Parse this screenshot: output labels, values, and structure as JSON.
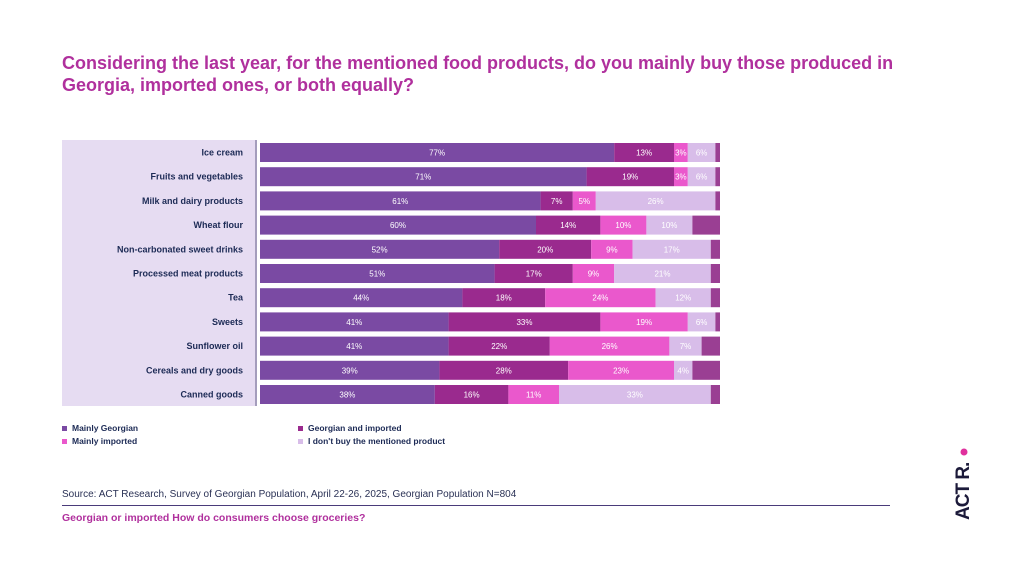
{
  "title": "Considering the last year, for the mentioned food products, do you mainly buy those produced in Georgia, imported ones, or both equally?",
  "source": "Source: ACT Research, Survey of Georgian Population, April 22-26, 2025, Georgian Population N=804",
  "footer": "Georgian or imported How do consumers choose groceries?",
  "logo_text": "ACT R.",
  "colors": {
    "mainly_georgian": "#7a4aa3",
    "georgian_and_imported": "#9a2a8e",
    "mainly_imported": "#ea58cc",
    "dont_buy": "#d8bde9",
    "remainder": "#9a3f93",
    "title": "#b0309d",
    "label_panel": "#e6dcf2"
  },
  "chart_data": {
    "type": "bar",
    "orientation": "horizontal",
    "stacked": true,
    "categories": [
      "Ice cream",
      "Fruits and vegetables",
      "Milk and dairy products",
      "Wheat flour",
      "Non-carbonated sweet drinks",
      "Processed meat products",
      "Tea",
      "Sweets",
      "Sunflower oil",
      "Cereals and dry goods",
      "Canned goods"
    ],
    "series": [
      {
        "name": "Mainly Georgian",
        "values": [
          77,
          71,
          61,
          60,
          52,
          51,
          44,
          41,
          41,
          39,
          38
        ]
      },
      {
        "name": "Georgian and imported",
        "values": [
          13,
          19,
          7,
          14,
          20,
          17,
          18,
          33,
          22,
          28,
          16
        ]
      },
      {
        "name": "Mainly imported",
        "values": [
          3,
          3,
          5,
          10,
          9,
          9,
          24,
          19,
          26,
          23,
          11
        ]
      },
      {
        "name": "I don't buy the mentioned product",
        "values": [
          6,
          6,
          26,
          10,
          17,
          21,
          12,
          6,
          7,
          4,
          33
        ]
      }
    ],
    "xlim": [
      0,
      100
    ],
    "unit": "%",
    "legend_position": "bottom-left"
  }
}
